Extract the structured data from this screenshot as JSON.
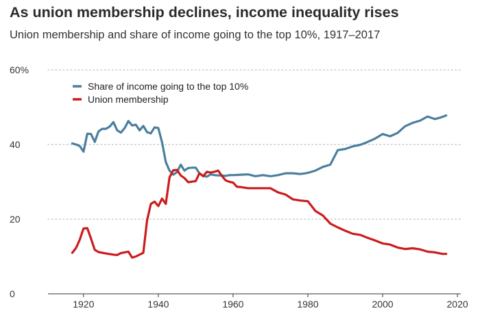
{
  "chart_data": {
    "type": "line",
    "title": "As union membership declines, income inequality rises",
    "subtitle": "Union membership and share of income going to the top 10%, 1917–2017",
    "xlabel": "",
    "ylabel": "",
    "xlim": [
      1917,
      2017
    ],
    "ylim": [
      0,
      60
    ],
    "x_ticks": [
      "1920",
      "1940",
      "1960",
      "1980",
      "2000",
      "2020"
    ],
    "x_tick_values": [
      1920,
      1940,
      1960,
      1980,
      2000,
      2020
    ],
    "y_ticks": [
      "0",
      "20",
      "40",
      "60%"
    ],
    "y_tick_values": [
      0,
      20,
      40,
      60
    ],
    "grid": "horizontal dotted",
    "legend_position": "top-left",
    "series": [
      {
        "name": "Share of income going to the top 10%",
        "color": "#4a7f9d",
        "x": [
          1917,
          1918,
          1919,
          1920,
          1921,
          1922,
          1923,
          1924,
          1925,
          1926,
          1927,
          1928,
          1929,
          1930,
          1931,
          1932,
          1933,
          1934,
          1935,
          1936,
          1937,
          1938,
          1939,
          1940,
          1941,
          1942,
          1943,
          1944,
          1945,
          1946,
          1947,
          1948,
          1949,
          1950,
          1951,
          1952,
          1953,
          1954,
          1955,
          1956,
          1957,
          1958,
          1959,
          1960,
          1962,
          1964,
          1966,
          1968,
          1970,
          1972,
          1974,
          1976,
          1978,
          1980,
          1982,
          1984,
          1986,
          1988,
          1990,
          1992,
          1994,
          1996,
          1998,
          2000,
          2002,
          2004,
          2006,
          2008,
          2010,
          2012,
          2014,
          2016,
          2017
        ],
        "values": [
          40.3,
          40.0,
          39.6,
          38.1,
          42.9,
          42.8,
          40.7,
          43.5,
          44.2,
          44.2,
          44.8,
          46.0,
          43.8,
          43.2,
          44.4,
          46.3,
          45.1,
          45.3,
          43.8,
          45.0,
          43.3,
          43.0,
          44.6,
          44.4,
          40.6,
          35.3,
          33.0,
          31.9,
          32.6,
          34.6,
          33.0,
          33.7,
          33.8,
          33.8,
          32.3,
          31.6,
          31.4,
          32.0,
          31.8,
          31.7,
          31.7,
          31.6,
          31.8,
          31.8,
          31.9,
          32.0,
          31.5,
          31.8,
          31.5,
          31.8,
          32.3,
          32.3,
          32.1,
          32.4,
          33.0,
          34.0,
          34.6,
          38.5,
          38.8,
          39.5,
          39.9,
          40.7,
          41.6,
          42.8,
          42.2,
          43.1,
          44.9,
          45.8,
          46.4,
          47.5,
          46.8,
          47.4,
          47.8
        ]
      },
      {
        "name": "Union membership",
        "color": "#cc1b1b",
        "x": [
          1917,
          1918,
          1919,
          1920,
          1921,
          1922,
          1923,
          1924,
          1926,
          1928,
          1929,
          1930,
          1932,
          1933,
          1934,
          1936,
          1937,
          1938,
          1939,
          1940,
          1941,
          1942,
          1943,
          1944,
          1945,
          1946,
          1947,
          1948,
          1950,
          1951,
          1952,
          1953,
          1954,
          1955,
          1956,
          1957,
          1958,
          1959,
          1960,
          1961,
          1962,
          1964,
          1966,
          1968,
          1970,
          1972,
          1974,
          1976,
          1978,
          1980,
          1982,
          1984,
          1986,
          1988,
          1990,
          1992,
          1994,
          1996,
          1998,
          2000,
          2002,
          2004,
          2006,
          2008,
          2010,
          2012,
          2014,
          2016,
          2017
        ],
        "values": [
          11.0,
          12.3,
          14.5,
          17.5,
          17.6,
          14.8,
          11.8,
          11.2,
          10.8,
          10.5,
          10.4,
          10.9,
          11.3,
          9.7,
          10.0,
          11.0,
          19.7,
          24.1,
          24.7,
          23.5,
          25.5,
          24.1,
          31.2,
          33.1,
          33.2,
          31.7,
          31.0,
          29.9,
          30.2,
          32.3,
          31.5,
          32.7,
          32.5,
          32.7,
          33.0,
          31.6,
          30.4,
          30.0,
          29.8,
          28.7,
          28.6,
          28.3,
          28.3,
          28.3,
          28.3,
          27.2,
          26.6,
          25.3,
          25.0,
          24.8,
          22.2,
          21.0,
          18.8,
          17.8,
          16.9,
          16.1,
          15.8,
          15.0,
          14.3,
          13.5,
          13.2,
          12.4,
          12.0,
          12.2,
          11.9,
          11.3,
          11.1,
          10.7,
          10.7
        ]
      }
    ]
  }
}
